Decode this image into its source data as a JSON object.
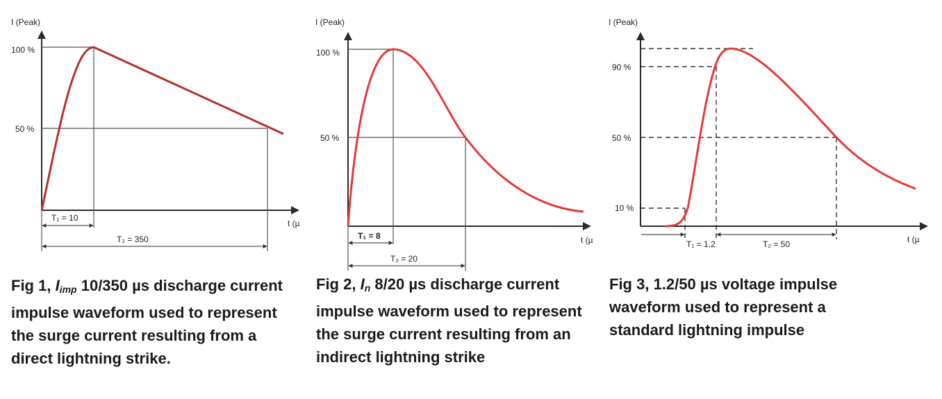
{
  "chart_data": [
    {
      "type": "line",
      "ylabel": "I (Peak)",
      "xlabel": "t (µ",
      "yticks": [
        "100 %",
        "50 %"
      ],
      "markers": [
        {
          "label": "T₁ = 10",
          "value": 10
        },
        {
          "label": "T₂ = 350",
          "value": 350
        }
      ],
      "series": [
        {
          "x": [
            0,
            10,
            350,
            380
          ],
          "y": [
            0,
            100,
            50,
            45
          ]
        }
      ],
      "caption": {
        "fig": "Fig 1,",
        "symbol": "I",
        "symbol_sub": "imp",
        "text": "10/350 µs discharge current impulse waveform used to represent the surge current resulting from a direct lightning strike."
      }
    },
    {
      "type": "line",
      "ylabel": "I (Peak)",
      "xlabel": "t (µ",
      "yticks": [
        "100 %",
        "50 %"
      ],
      "markers": [
        {
          "label": "T₁ = 8",
          "value": 8
        },
        {
          "label": "T₂ = 20",
          "value": 20
        }
      ],
      "series": [
        {
          "x": [
            0,
            8,
            20,
            40
          ],
          "y": [
            0,
            100,
            50,
            8
          ]
        }
      ],
      "caption": {
        "fig": "Fig 2,",
        "symbol": "I",
        "symbol_sub": "n",
        "text": "8/20 µs discharge current impulse waveform used to represent the surge current resulting from an indirect lightning strike"
      }
    },
    {
      "type": "line",
      "ylabel": "I (Peak)",
      "xlabel": "t (µ",
      "yticks": [
        "90 %",
        "50 %",
        "10 %"
      ],
      "markers": [
        {
          "label": "T₁ = 1.2",
          "value": 1.2
        },
        {
          "label": "T₂ = 50",
          "value": 50
        }
      ],
      "series": [
        {
          "x": [
            0,
            1.2,
            50
          ],
          "y": [
            0,
            100,
            50
          ]
        }
      ],
      "caption": {
        "fig": "Fig 3,",
        "text": "1.2/50 µs voltage impulse waveform used to represent a standard lightning impulse"
      }
    }
  ]
}
